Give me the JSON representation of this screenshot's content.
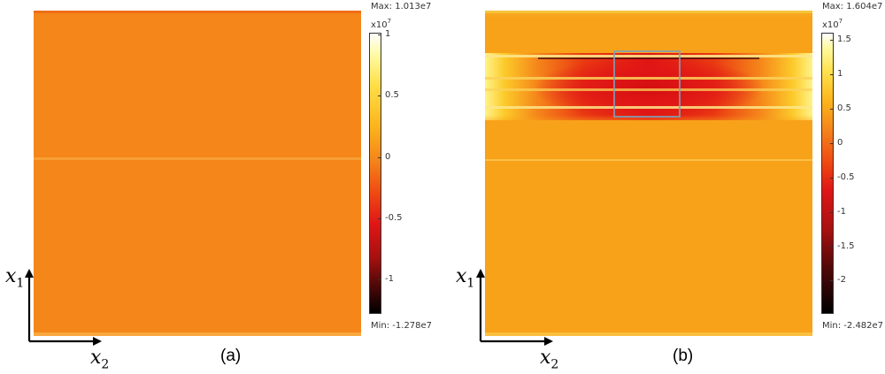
{
  "panels": [
    {
      "id": "a",
      "label": "(a)",
      "max_text": "Max: 1.013e7",
      "min_text": "Min: -1.278e7",
      "exponent_base": "x10",
      "exponent_power": "7",
      "colorbar_ticks": [
        {
          "label": "1",
          "value": 1
        },
        {
          "label": "0.5",
          "value": 0.5
        },
        {
          "label": "0",
          "value": 0
        },
        {
          "label": "-0.5",
          "value": -0.5
        },
        {
          "label": "-1",
          "value": -1
        }
      ],
      "colorbar_range": [
        -1.278,
        1.013
      ],
      "axis_vertical": "x",
      "axis_vertical_sub": "1",
      "axis_horizontal": "x",
      "axis_horizontal_sub": "2"
    },
    {
      "id": "b",
      "label": "(b)",
      "max_text": "Max: 1.604e7",
      "min_text": "Min: -2.482e7",
      "exponent_base": "x10",
      "exponent_power": "7",
      "colorbar_ticks": [
        {
          "label": "1.5",
          "value": 1.5
        },
        {
          "label": "1",
          "value": 1
        },
        {
          "label": "0.5",
          "value": 0.5
        },
        {
          "label": "0",
          "value": 0
        },
        {
          "label": "-0.5",
          "value": -0.5
        },
        {
          "label": "-1",
          "value": -1
        },
        {
          "label": "-1.5",
          "value": -1.5
        },
        {
          "label": "-2",
          "value": -2
        }
      ],
      "colorbar_range": [
        -2.482,
        1.604
      ],
      "axis_vertical": "x",
      "axis_vertical_sub": "1",
      "axis_horizontal": "x",
      "axis_horizontal_sub": "2"
    }
  ],
  "colors": {
    "field_a": "#f5861a",
    "field_b": "#f8a21a",
    "box_outline": "#7aa3c0"
  }
}
